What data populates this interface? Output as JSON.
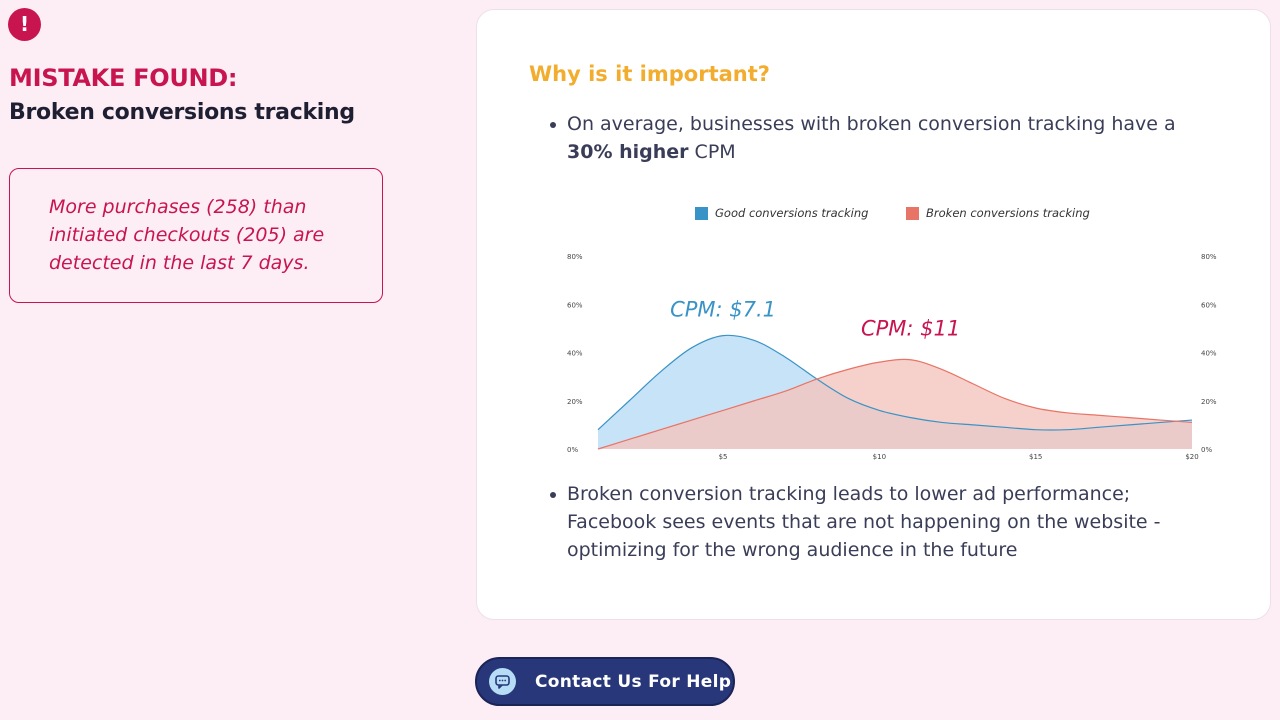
{
  "alert": {
    "icon": "exclamation-icon",
    "glyph": "!",
    "color": "#c8144f"
  },
  "mistake": {
    "label": "MISTAKE FOUND:",
    "title": "Broken conversions tracking",
    "detail": "More purchases (258) than initiated checkouts (205) are detected in the last 7 days."
  },
  "card": {
    "heading": "Why is it important?",
    "bullet1": {
      "prefix": "On average, businesses with broken conversion tracking have a ",
      "bold": "30% higher",
      "suffix": " CPM"
    },
    "bullet2": "Broken conversion tracking leads to lower ad performance; Facebook sees events that are not happening on the website - optimizing for the wrong audience in the future"
  },
  "chart_data": {
    "type": "area",
    "x": [
      1,
      2,
      3,
      4,
      5,
      6,
      7,
      8,
      9,
      10,
      11,
      12,
      13,
      14,
      15,
      16,
      17,
      18,
      19,
      20
    ],
    "x_ticks": [
      {
        "value": 5,
        "label": "$5"
      },
      {
        "value": 10,
        "label": "$10"
      },
      {
        "value": 15,
        "label": "$15"
      },
      {
        "value": 20,
        "label": "$20"
      }
    ],
    "y_ticks": [
      "0%",
      "20%",
      "40%",
      "60%",
      "80%"
    ],
    "ylim": [
      0,
      80
    ],
    "xlim": [
      1,
      20
    ],
    "legend_position": "top",
    "series": [
      {
        "name": "Good conversions tracking",
        "color": "#3a93c6",
        "fill": "#b9dcf5",
        "values": [
          8,
          20,
          32,
          42,
          47,
          45,
          38,
          29,
          21,
          16,
          13,
          11,
          10,
          9,
          8,
          8,
          9,
          10,
          11,
          12
        ]
      },
      {
        "name": "Broken conversions tracking",
        "color": "#e87467",
        "fill": "#f4c4be",
        "values": [
          0,
          4,
          8,
          12,
          16,
          20,
          24,
          29,
          33,
          36,
          37,
          33,
          27,
          21,
          17,
          15,
          14,
          13,
          12,
          11
        ]
      }
    ],
    "annotations": [
      {
        "text": "CPM: $7.1",
        "color": "#3a93c6",
        "x": 5,
        "y": 55
      },
      {
        "text": "CPM: $11",
        "color": "#c8144f",
        "x": 11,
        "y": 47
      }
    ]
  },
  "cta": {
    "label": "Contact Us For Help",
    "icon": "chat-bubble-icon"
  }
}
